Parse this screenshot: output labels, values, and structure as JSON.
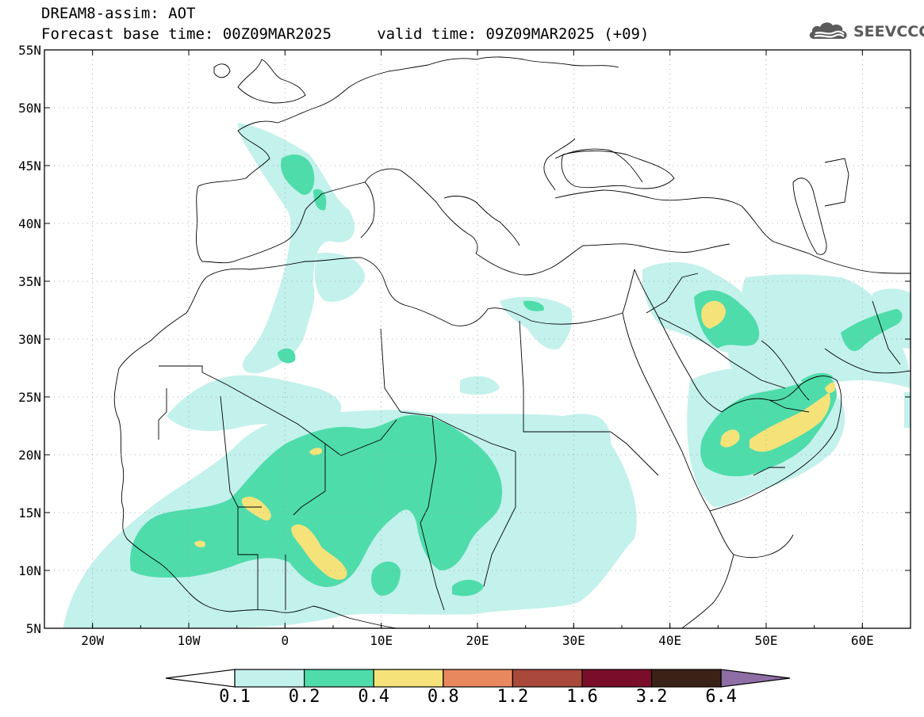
{
  "header": {
    "title_line1": "DREAM8-assim: AOT",
    "title_line2": "Forecast base time: 00Z09MAR2025     valid time: 09Z09MAR2025 (+09)"
  },
  "logo": {
    "icon": "cloud-logo-icon",
    "text": "SEEVCCC"
  },
  "map": {
    "lat_labels": [
      "55N",
      "50N",
      "45N",
      "40N",
      "35N",
      "30N",
      "25N",
      "20N",
      "15N",
      "10N",
      "5N"
    ],
    "lon_labels": [
      "20W",
      "10W",
      "0",
      "10E",
      "20E",
      "30E",
      "40E",
      "50E",
      "60E"
    ],
    "extent": {
      "lon_min": -25,
      "lon_max": 65,
      "lat_min": 5,
      "lat_max": 55
    },
    "variable": "AOT"
  },
  "colorbar": {
    "labels": [
      "0.1",
      "0.2",
      "0.4",
      "0.8",
      "1.2",
      "1.6",
      "3.2",
      "6.4"
    ],
    "colors": [
      "#ffffff",
      "#c3f1ec",
      "#4fdcab",
      "#f5e37a",
      "#e8885f",
      "#a8493b",
      "#7a0d2a",
      "#3a2316",
      "#8e6ea5"
    ]
  }
}
